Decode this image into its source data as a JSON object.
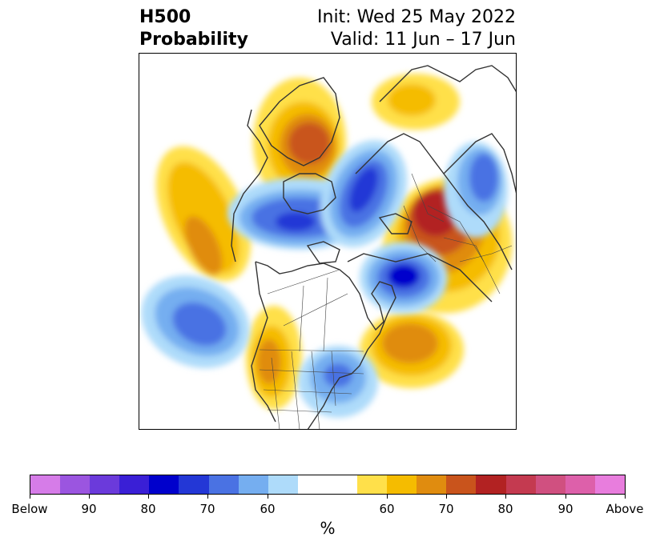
{
  "title": {
    "left_line1": "H500",
    "left_line2": "Probability",
    "right_line1": "Init: Wed 25 May 2022",
    "right_line2": "Valid: 11 Jun – 17 Jun"
  },
  "colorbar": {
    "colors": [
      "#d67ce8",
      "#9b55e0",
      "#6b3adb",
      "#3a1fd6",
      "#0000cc",
      "#2337d6",
      "#4a72e3",
      "#75aef0",
      "#aedbfa",
      "#ffffff",
      "#ffffff",
      "#ffe04a",
      "#f5bc00",
      "#e08c0f",
      "#c9541c",
      "#b22222",
      "#c43a50",
      "#d05080",
      "#dd60aa",
      "#e87ddd"
    ],
    "labels": [
      "Below",
      "90",
      "80",
      "70",
      "60",
      "60",
      "70",
      "80",
      "90",
      "Above"
    ],
    "units": "%"
  },
  "map": {
    "features": [
      "north-america",
      "greenland",
      "europe",
      "russia",
      "arctic-ocean"
    ]
  }
}
